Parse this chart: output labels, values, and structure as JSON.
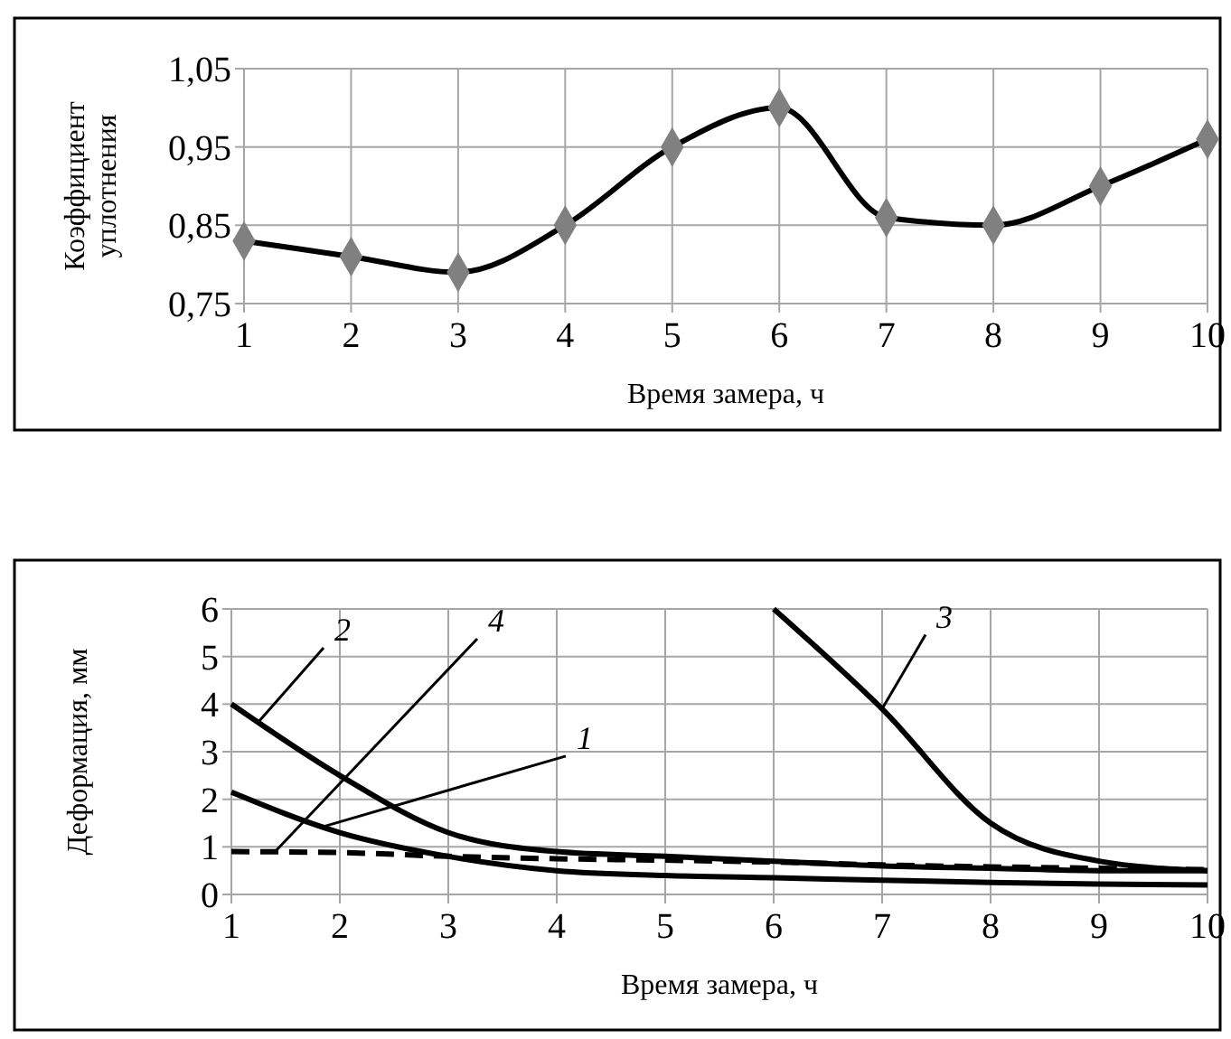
{
  "chart_data": [
    {
      "type": "line",
      "xlabel": "Время замера, ч",
      "ylabel": "Коэффициент уплотнения",
      "x": [
        1,
        2,
        3,
        4,
        5,
        6,
        7,
        8,
        9,
        10
      ],
      "xlim": [
        1,
        10
      ],
      "xticks": [
        1,
        2,
        3,
        4,
        5,
        6,
        7,
        8,
        9,
        10
      ],
      "ylim": [
        0.75,
        1.05
      ],
      "yticks": [
        {
          "value": 0.75,
          "label": "0,75"
        },
        {
          "value": 0.85,
          "label": "0,85"
        },
        {
          "value": 0.95,
          "label": "0,95"
        },
        {
          "value": 1.05,
          "label": "1,05"
        }
      ],
      "grid": true,
      "marker": "diamond",
      "series": [
        {
          "color": "#000000",
          "values": [
            0.83,
            0.81,
            0.79,
            0.85,
            0.95,
            1.0,
            0.86,
            0.85,
            0.9,
            0.96
          ]
        }
      ]
    },
    {
      "type": "line",
      "xlabel": "Время замера, ч",
      "ylabel": "Деформация, мм",
      "x": [
        1,
        2,
        3,
        4,
        5,
        6,
        7,
        8,
        9,
        10
      ],
      "xlim": [
        1,
        10
      ],
      "xticks": [
        1,
        2,
        3,
        4,
        5,
        6,
        7,
        8,
        9,
        10
      ],
      "ylim": [
        0,
        6
      ],
      "yticks": [
        0,
        1,
        2,
        3,
        4,
        5,
        6
      ],
      "grid": true,
      "marker": "none",
      "series": [
        {
          "name": "1",
          "color": "#000000",
          "values": [
            2.15,
            1.3,
            0.8,
            0.5,
            0.4,
            0.35,
            0.3,
            0.25,
            0.22,
            0.2
          ]
        },
        {
          "name": "2",
          "color": "#000000",
          "values": [
            4,
            2.5,
            1.3,
            0.9,
            0.8,
            0.7,
            0.6,
            0.55,
            0.5,
            0.5
          ]
        },
        {
          "name": "3",
          "color": "#000000",
          "x": [
            6,
            7,
            8,
            9,
            10
          ],
          "values": [
            6,
            3.9,
            1.5,
            0.7,
            0.5
          ]
        },
        {
          "name": "4",
          "color": "#000000",
          "line_style": "dashed",
          "values": [
            0.9,
            0.88,
            0.8,
            0.75,
            0.72,
            0.68,
            0.62,
            0.58,
            0.55,
            0.52
          ]
        }
      ]
    }
  ]
}
